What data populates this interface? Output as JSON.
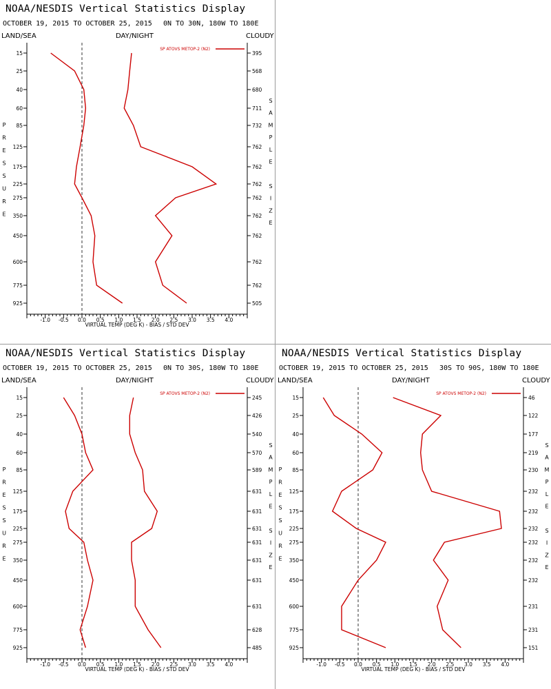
{
  "labels": {
    "title": "NOAA/NESDIS Vertical Statistics Display",
    "land_sea": "LAND/SEA",
    "day_night": "DAY/NIGHT",
    "cloudy": "CLOUDY",
    "left_axis": "PRESSURE",
    "right_axis": "SAMPLE SIZE",
    "xlabel": "VIRTUAL TEMP (DEG K) - BIAS / STD DEV",
    "legend": "SP ATOVS METOP-2 (N2)"
  },
  "colors": {
    "series": "#cc0000",
    "axis": "#000000",
    "zero_line": "#333333"
  },
  "chart_data": [
    {
      "type": "line",
      "panel": "top-left",
      "subtitle_left": "OCTOBER 19, 2015 TO OCTOBER 25, 2015",
      "subtitle_right": "0N TO 30N, 180W TO 180E",
      "legend_position": "top-right",
      "pressure_levels": [
        15,
        25,
        40,
        60,
        85,
        125,
        175,
        225,
        275,
        350,
        450,
        600,
        775,
        925
      ],
      "sample_size": [
        395,
        568,
        680,
        711,
        732,
        762,
        762,
        762,
        762,
        762,
        762,
        762,
        762,
        505
      ],
      "bias": [
        -0.85,
        -0.2,
        0.05,
        0.1,
        0.05,
        -0.05,
        -0.15,
        -0.2,
        0.0,
        0.25,
        0.35,
        0.3,
        0.4,
        1.1
      ],
      "std_dev": [
        1.35,
        1.3,
        1.25,
        1.15,
        1.4,
        1.6,
        3.0,
        3.65,
        2.55,
        2.0,
        2.45,
        2.0,
        2.2,
        2.85
      ],
      "xlim": [
        -1.5,
        4.5
      ],
      "xticks": [
        -1.0,
        -0.5,
        0.0,
        0.5,
        1.0,
        1.5,
        2.0,
        2.5,
        3.0,
        3.5,
        4.0
      ]
    },
    {
      "type": "line",
      "panel": "bottom-left",
      "subtitle_left": "OCTOBER 19, 2015 TO OCTOBER 25, 2015",
      "subtitle_right": "0N TO 30S, 180W TO 180E",
      "legend_position": "top-right",
      "pressure_levels": [
        15,
        25,
        40,
        60,
        85,
        125,
        175,
        225,
        275,
        350,
        450,
        600,
        775,
        925
      ],
      "sample_size": [
        245,
        426,
        540,
        570,
        589,
        631,
        631,
        631,
        631,
        631,
        631,
        631,
        628,
        485
      ],
      "bias": [
        -0.5,
        -0.2,
        0.0,
        0.1,
        0.3,
        -0.25,
        -0.45,
        -0.35,
        0.05,
        0.15,
        0.3,
        0.15,
        -0.05,
        0.1
      ],
      "std_dev": [
        1.4,
        1.3,
        1.3,
        1.45,
        1.65,
        1.7,
        2.05,
        1.9,
        1.35,
        1.35,
        1.45,
        1.45,
        1.8,
        2.15
      ],
      "xlim": [
        -1.5,
        4.5
      ],
      "xticks": [
        -1.0,
        -0.5,
        0.0,
        0.5,
        1.0,
        1.5,
        2.0,
        2.5,
        3.0,
        3.5,
        4.0
      ]
    },
    {
      "type": "line",
      "panel": "bottom-right",
      "subtitle_left": "OCTOBER 19, 2015 TO OCTOBER 25, 2015",
      "subtitle_right": "30S TO 90S, 180W TO 180E",
      "legend_position": "top-right",
      "pressure_levels": [
        15,
        25,
        40,
        60,
        85,
        125,
        175,
        225,
        275,
        350,
        450,
        600,
        775,
        925
      ],
      "sample_size": [
        46,
        122,
        177,
        219,
        230,
        232,
        232,
        232,
        232,
        232,
        232,
        231,
        231,
        151
      ],
      "bias": [
        -0.95,
        -0.65,
        0.1,
        0.65,
        0.4,
        -0.45,
        -0.7,
        -0.05,
        0.75,
        0.5,
        0.0,
        -0.45,
        -0.45,
        0.75
      ],
      "std_dev": [
        0.95,
        2.25,
        1.75,
        1.7,
        1.75,
        2.0,
        3.85,
        3.9,
        2.35,
        2.05,
        2.45,
        2.15,
        2.3,
        2.8
      ],
      "xlim": [
        -1.5,
        4.5
      ],
      "xticks": [
        -1.0,
        -0.5,
        0.0,
        0.5,
        1.0,
        1.5,
        2.0,
        2.5,
        3.0,
        3.5,
        4.0
      ]
    }
  ]
}
